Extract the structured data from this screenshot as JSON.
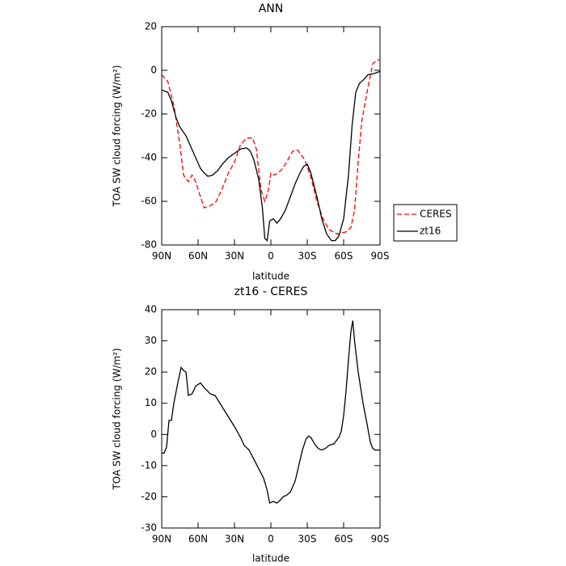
{
  "chart_data": [
    {
      "type": "line",
      "title": "ANN",
      "xlabel": "latitude",
      "ylabel": "TOA SW cloud forcing (W/m²)",
      "xlim": [
        90,
        -90
      ],
      "ylim": [
        20,
        -80
      ],
      "xticks": [
        {
          "value": 90,
          "label": "90N"
        },
        {
          "value": 60,
          "label": "60N"
        },
        {
          "value": 30,
          "label": "30N"
        },
        0,
        {
          "value": -30,
          "label": "30S"
        },
        {
          "value": -60,
          "label": "60S"
        },
        {
          "value": -90,
          "label": "90S"
        }
      ],
      "yticks": [
        20,
        0,
        -20,
        -40,
        -60,
        -80
      ],
      "legend": "right",
      "series": [
        {
          "name": "CERES",
          "color": "#ff0000",
          "linestyle": "dashed",
          "x": [
            90,
            85,
            80,
            75,
            72,
            68,
            65,
            62,
            58,
            55,
            50,
            45,
            40,
            35,
            30,
            25,
            20,
            15,
            12,
            8,
            5,
            2,
            0,
            -3,
            -8,
            -12,
            -18,
            -22,
            -28,
            -33,
            -38,
            -43,
            -48,
            -55,
            -62,
            -66,
            -69,
            -72,
            -75,
            -80,
            -84,
            -87,
            -90
          ],
          "values": [
            -2,
            -5,
            -16,
            -34,
            -48,
            -51,
            -48,
            -51,
            -58,
            -63,
            -62,
            -60,
            -54,
            -47,
            -42,
            -34,
            -31,
            -31,
            -36,
            -55,
            -60,
            -55,
            -47,
            -48,
            -46,
            -43,
            -37,
            -36.5,
            -41,
            -49,
            -60,
            -68,
            -73,
            -75,
            -74,
            -72,
            -64,
            -42,
            -23,
            -8,
            3,
            4.5,
            5
          ]
        },
        {
          "name": "zt16",
          "color": "#000000",
          "linestyle": "solid",
          "x": [
            90,
            85,
            82,
            78,
            75,
            70,
            66,
            62,
            58,
            55,
            52,
            48,
            44,
            40,
            35,
            30,
            25,
            20,
            17,
            14,
            10,
            7,
            5,
            3,
            1,
            -2,
            -5,
            -8,
            -12,
            -16,
            -20,
            -24,
            -27,
            -30,
            -33,
            -38,
            -42,
            -46,
            -50,
            -53,
            -56,
            -60,
            -64,
            -67,
            -70,
            -73,
            -77,
            -80,
            -85,
            -90
          ],
          "values": [
            -9,
            -10,
            -14,
            -22,
            -26,
            -30,
            -35,
            -40,
            -45,
            -47,
            -48.5,
            -48,
            -46,
            -43,
            -40,
            -38,
            -36,
            -35.5,
            -37,
            -41,
            -50,
            -63,
            -77,
            -78,
            -69,
            -68,
            -70,
            -68,
            -64,
            -58,
            -52,
            -47,
            -44,
            -43,
            -47,
            -58,
            -68,
            -75,
            -78,
            -78,
            -76,
            -68,
            -48,
            -25,
            -10,
            -6,
            -4,
            -2,
            -1.5,
            -0.5
          ]
        }
      ]
    },
    {
      "type": "line",
      "title": "zt16 - CERES",
      "xlabel": "latitude",
      "ylabel": "TOA SW cloud forcing (W/m²)",
      "xlim": [
        90,
        -90
      ],
      "ylim": [
        40,
        -30
      ],
      "xticks": [
        {
          "value": 90,
          "label": "90N"
        },
        {
          "value": 60,
          "label": "60N"
        },
        {
          "value": 30,
          "label": "30N"
        },
        0,
        {
          "value": -30,
          "label": "30S"
        },
        {
          "value": -60,
          "label": "60S"
        },
        {
          "value": -90,
          "label": "90S"
        }
      ],
      "yticks": [
        40,
        30,
        20,
        10,
        0,
        -10,
        -20,
        -30
      ],
      "series": [
        {
          "color": "#000000",
          "linestyle": "solid",
          "x": [
            90,
            88,
            86,
            84,
            82,
            80,
            77,
            74,
            72,
            70,
            68,
            65,
            62,
            58,
            55,
            50,
            46,
            42,
            38,
            34,
            30,
            25,
            22,
            18,
            14,
            10,
            6,
            3,
            1,
            -2,
            -5,
            -8,
            -10,
            -13,
            -16,
            -20,
            -23,
            -26,
            -29,
            -31,
            -33,
            -36,
            -39,
            -42,
            -45,
            -48,
            -52,
            -56,
            -58,
            -60,
            -62,
            -64,
            -66,
            -67.5,
            -69,
            -72,
            -76,
            -79,
            -82,
            -84,
            -86,
            -90
          ],
          "values": [
            -6,
            -6,
            -4,
            4.5,
            4.5,
            10,
            16,
            21.5,
            20.5,
            20,
            12.5,
            13,
            15.5,
            16.5,
            15,
            13,
            12.5,
            10,
            7.5,
            5,
            2.5,
            -1,
            -3.5,
            -5,
            -8,
            -11,
            -14,
            -18,
            -22,
            -21.5,
            -22,
            -21,
            -20,
            -19.5,
            -18.5,
            -15,
            -10,
            -5,
            -1.5,
            -0.5,
            -1,
            -3,
            -4.5,
            -5,
            -4.5,
            -3.5,
            -3,
            -1,
            1,
            6,
            14,
            24,
            33,
            36.5,
            30,
            20,
            10,
            4,
            -2.5,
            -4.5,
            -5,
            -5
          ]
        }
      ]
    }
  ]
}
